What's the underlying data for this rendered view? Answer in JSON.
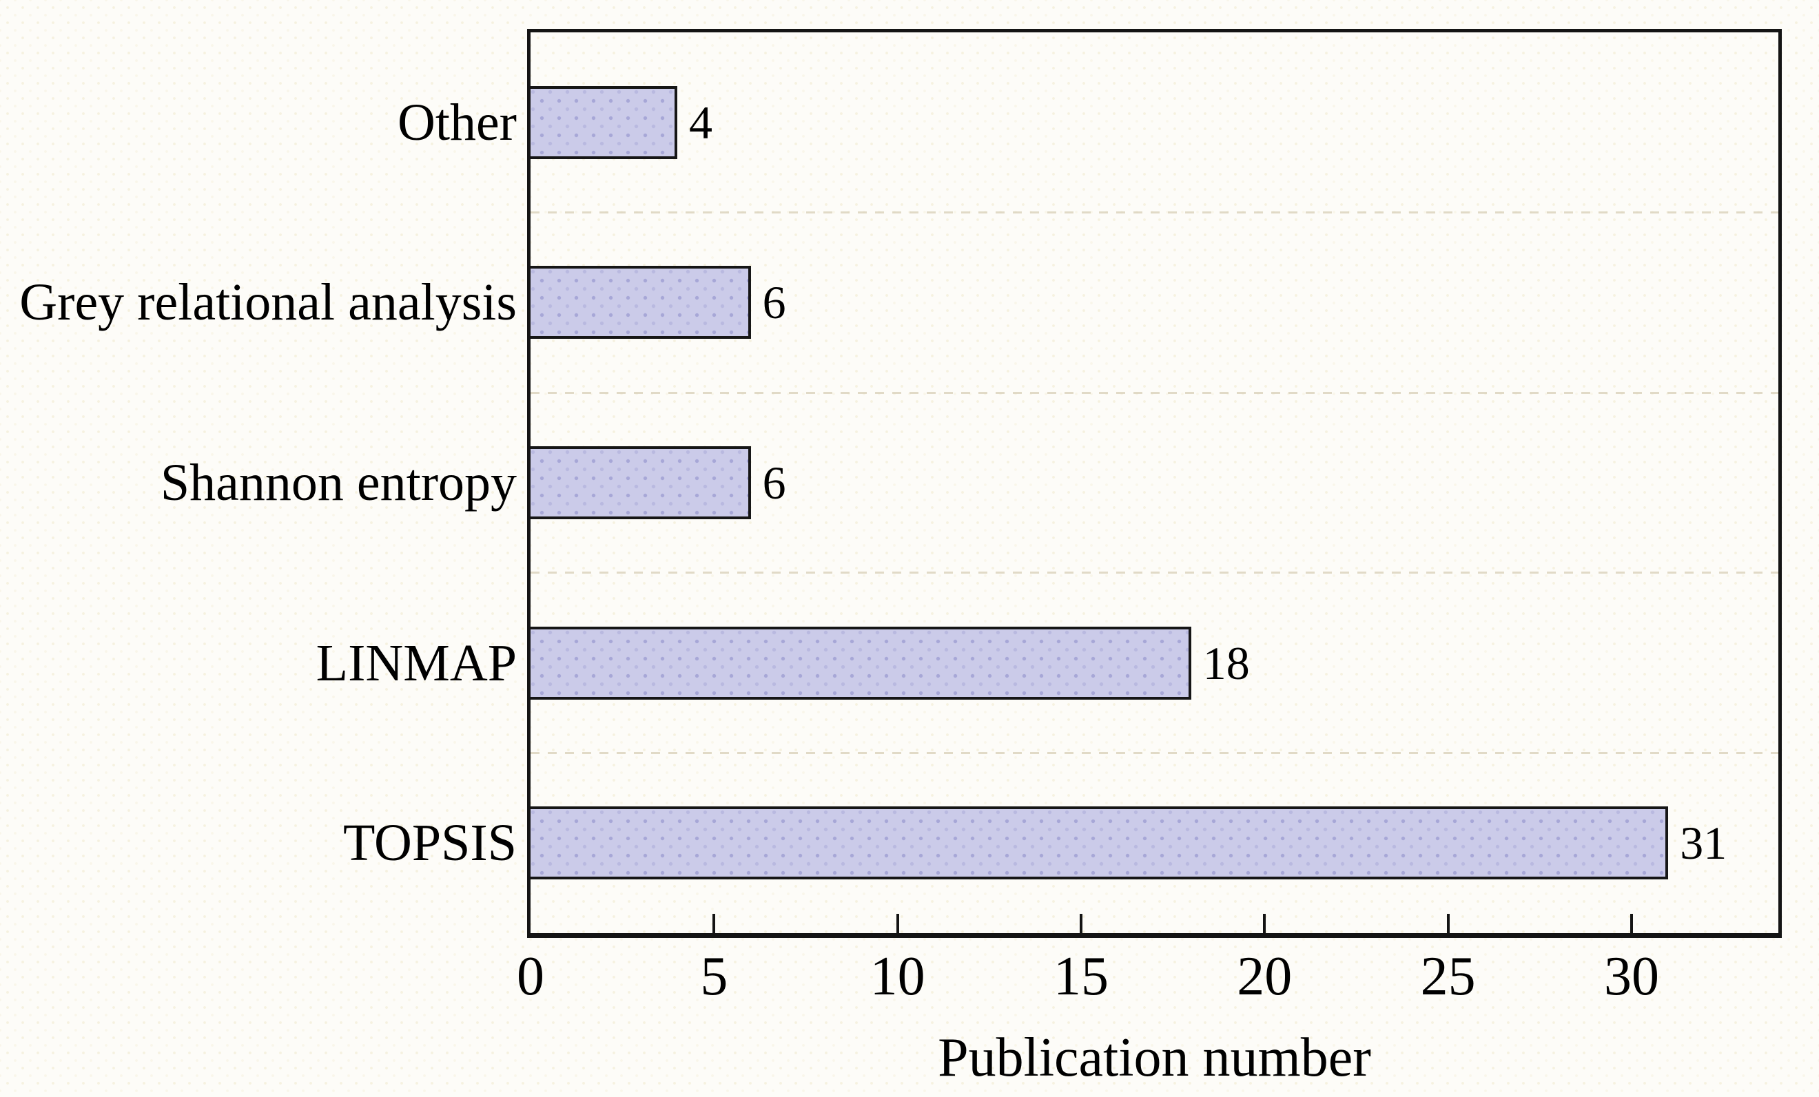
{
  "figure": {
    "background_color": "#fdfcf8",
    "frame_color": "#141414",
    "grid_color": "#dcd4be",
    "text_color": "#000000"
  },
  "chart_data": {
    "type": "bar",
    "orientation": "horizontal",
    "title": "",
    "xlabel": "Publication number",
    "ylabel": "",
    "categories": [
      "Other",
      "Grey relational analysis",
      "Shannon entropy",
      "LINMAP",
      "TOPSIS"
    ],
    "values": [
      4,
      6,
      6,
      18,
      31
    ],
    "value_labels": [
      "4",
      "6",
      "6",
      "18",
      "31"
    ],
    "x_ticks": [
      0,
      5,
      10,
      15,
      20,
      25,
      30
    ],
    "xlim": [
      0,
      34
    ],
    "grid": "faint dashed horizontal lines between category bands",
    "legend": "none",
    "bar_fill_color": "#cbcbe9",
    "bar_dot_color": "#a7a7d7",
    "bar_border_color": "#161616"
  }
}
